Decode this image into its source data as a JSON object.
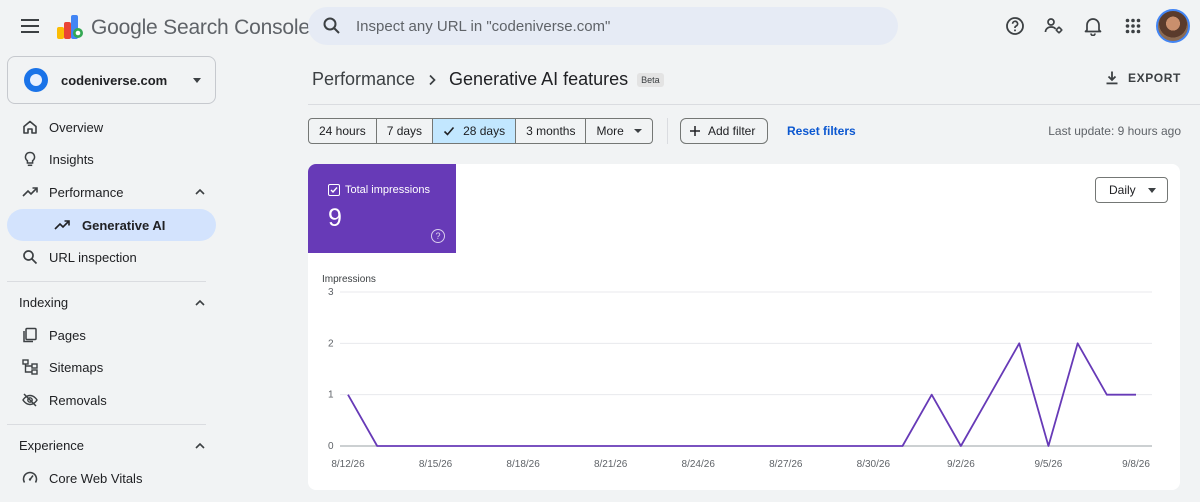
{
  "header": {
    "product_name_google": "Google",
    "product_name_rest": "Search Console",
    "search_placeholder": "Inspect any URL in \"codeniverse.com\""
  },
  "sidebar": {
    "property_name": "codeniverse.com",
    "items": [
      {
        "label": "Overview",
        "icon": "home-icon"
      },
      {
        "label": "Insights",
        "icon": "lightbulb-icon"
      },
      {
        "label": "Performance",
        "icon": "trending-up-icon"
      },
      {
        "label": "Generative AI",
        "icon": "trending-up-icon"
      },
      {
        "label": "URL inspection",
        "icon": "search-icon"
      }
    ],
    "sections": [
      {
        "title": "Indexing",
        "items": [
          {
            "label": "Pages",
            "icon": "pages-icon"
          },
          {
            "label": "Sitemaps",
            "icon": "sitemap-icon"
          },
          {
            "label": "Removals",
            "icon": "eye-off-icon"
          }
        ]
      },
      {
        "title": "Experience",
        "items": [
          {
            "label": "Core Web Vitals",
            "icon": "gauge-icon"
          }
        ]
      }
    ]
  },
  "main": {
    "breadcrumb_root": "Performance",
    "breadcrumb_current": "Generative AI features",
    "badge": "Beta",
    "export_label": "EXPORT",
    "date_chips": [
      "24 hours",
      "7 days",
      "28 days",
      "3 months",
      "More"
    ],
    "selected_chip": "28 days",
    "add_filter_label": "Add filter",
    "reset_filters_label": "Reset filters",
    "last_update": "Last update: 9 hours ago",
    "metric": {
      "label": "Total impressions",
      "value": "9",
      "help": "?"
    },
    "granularity": "Daily"
  },
  "colors": {
    "metric_purple": "#673ab7",
    "accent_blue": "#0b57d0",
    "selected_chip": "#c2e7ff",
    "active_nav": "#d3e3fd"
  },
  "chart_data": {
    "type": "line",
    "ylabel": "Impressions",
    "ylim": [
      0,
      3
    ],
    "yticks": [
      "3",
      "2",
      "1",
      "0"
    ],
    "xtick_labels": [
      "8/12/26",
      "8/15/26",
      "8/18/26",
      "8/21/26",
      "8/24/26",
      "8/27/26",
      "8/30/26",
      "9/2/26",
      "9/5/26",
      "9/8/26"
    ],
    "x": [
      "8/12/26",
      "8/13/26",
      "8/14/26",
      "8/15/26",
      "8/16/26",
      "8/17/26",
      "8/18/26",
      "8/19/26",
      "8/20/26",
      "8/21/26",
      "8/22/26",
      "8/23/26",
      "8/24/26",
      "8/25/26",
      "8/26/26",
      "8/27/26",
      "8/28/26",
      "8/29/26",
      "8/30/26",
      "8/31/26",
      "9/1/26",
      "9/2/26",
      "9/3/26",
      "9/4/26",
      "9/5/26",
      "9/6/26",
      "9/7/26",
      "9/8/26"
    ],
    "series": [
      {
        "values": [
          1,
          0,
          0,
          0,
          0,
          0,
          0,
          0,
          0,
          0,
          0,
          0,
          0,
          0,
          0,
          0,
          0,
          0,
          0,
          0,
          1,
          0,
          1,
          2,
          0,
          2,
          1,
          1
        ],
        "color": "#673ab7"
      }
    ],
    "grid": true
  }
}
